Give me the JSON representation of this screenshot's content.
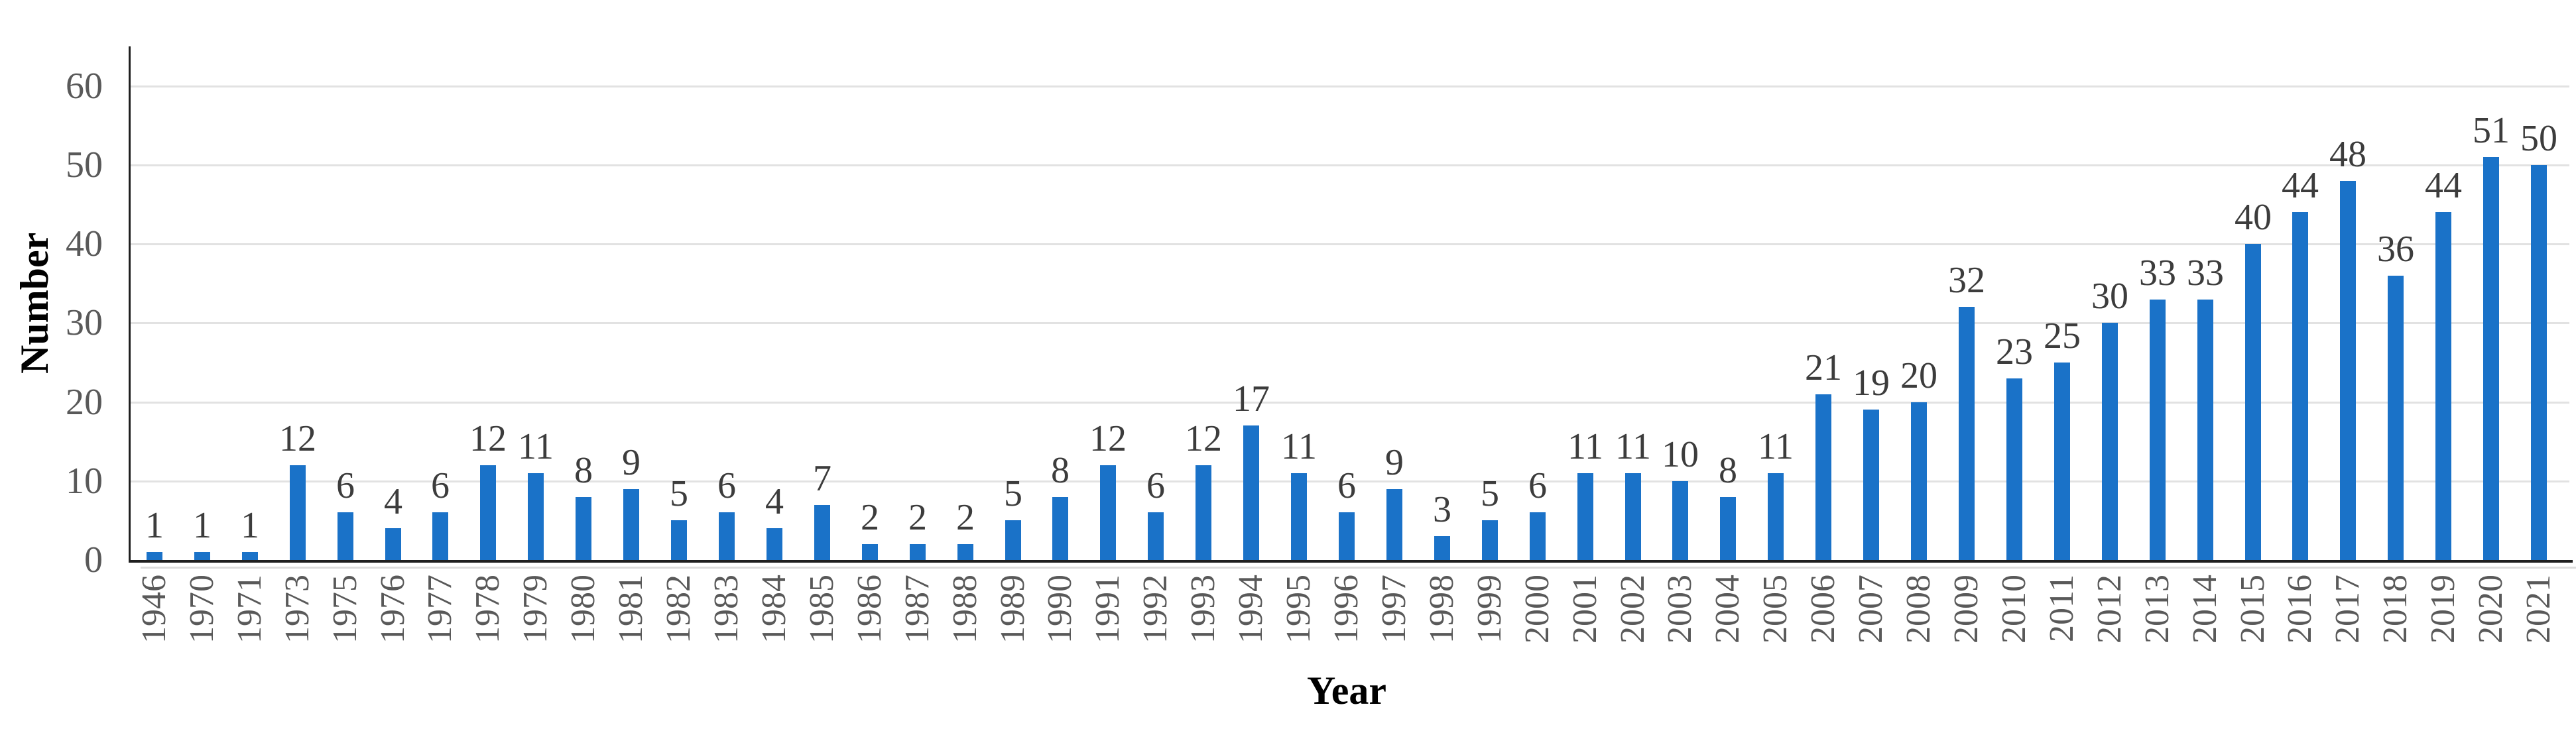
{
  "chart_data": {
    "type": "bar",
    "title": "",
    "xlabel": "Year",
    "ylabel": "Number",
    "categories": [
      "1946",
      "1970",
      "1971",
      "1973",
      "1975",
      "1976",
      "1977",
      "1978",
      "1979",
      "1980",
      "1981",
      "1982",
      "1983",
      "1984",
      "1985",
      "1986",
      "1987",
      "1988",
      "1989",
      "1990",
      "1991",
      "1992",
      "1993",
      "1994",
      "1995",
      "1996",
      "1997",
      "1998",
      "1999",
      "2000",
      "2001",
      "2002",
      "2003",
      "2004",
      "2005",
      "2006",
      "2007",
      "2008",
      "2009",
      "2010",
      "2011",
      "2012",
      "2013",
      "2014",
      "2015",
      "2016",
      "2017",
      "2018",
      "2019",
      "2020",
      "2021"
    ],
    "values": [
      1,
      1,
      1,
      12,
      6,
      4,
      6,
      12,
      11,
      8,
      9,
      5,
      6,
      4,
      7,
      2,
      2,
      2,
      5,
      8,
      12,
      6,
      12,
      17,
      11,
      6,
      9,
      3,
      5,
      6,
      11,
      11,
      10,
      8,
      11,
      21,
      19,
      20,
      32,
      23,
      25,
      30,
      33,
      33,
      40,
      44,
      48,
      36,
      44,
      51,
      50
    ],
    "ylim": [
      0,
      65
    ],
    "yticks": [
      0,
      10,
      20,
      30,
      40,
      50,
      60
    ],
    "grid": true,
    "bar_labels_shown": true,
    "legend_position": "none",
    "colors": {
      "bar": "#1A72C8",
      "value_label": "#3C3C3C",
      "tick_label": "#595959",
      "gridline": "#E2E2E2",
      "axis_line": "#1F1F1F",
      "axis_shadow": "#DCDCDC",
      "background": "#FFFFFF",
      "axis_title": "#000000"
    }
  }
}
